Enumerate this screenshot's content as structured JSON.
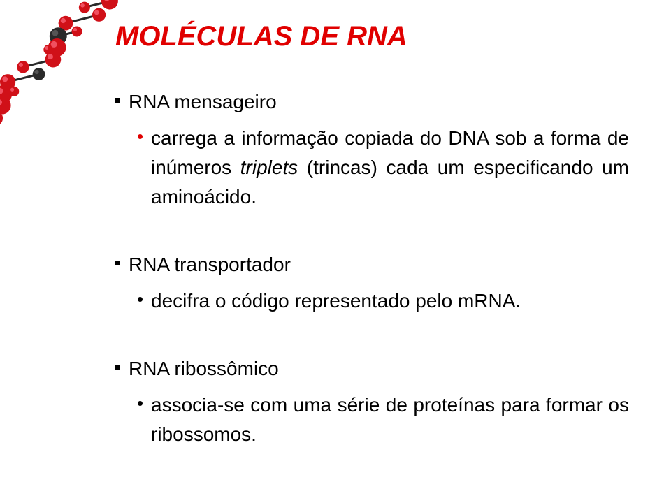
{
  "title": {
    "text": "MOLÉCULAS DE RNA",
    "color": "#e00000"
  },
  "sections": [
    {
      "heading": "RNA mensageiro",
      "sub_bullet_color": "#e00000",
      "body_pre_italic": "carrega a informação copiada do DNA sob a forma de inúmeros ",
      "body_italic": "triplets",
      "body_post_italic": " (trincas) cada um especificando um aminoácido."
    },
    {
      "heading": "RNA transportador",
      "sub_bullet_color": "#000000",
      "body_pre_italic": "decifra o código representado pelo mRNA.",
      "body_italic": "",
      "body_post_italic": ""
    },
    {
      "heading": "RNA ribossômico",
      "sub_bullet_color": "#000000",
      "body_pre_italic": "associa-se com uma série de proteínas para formar os ribossomos.",
      "body_italic": "",
      "body_post_italic": ""
    }
  ],
  "dna_colors": {
    "red": "#d01018",
    "dark": "#2a2a2a",
    "highlight": "#f05060"
  }
}
